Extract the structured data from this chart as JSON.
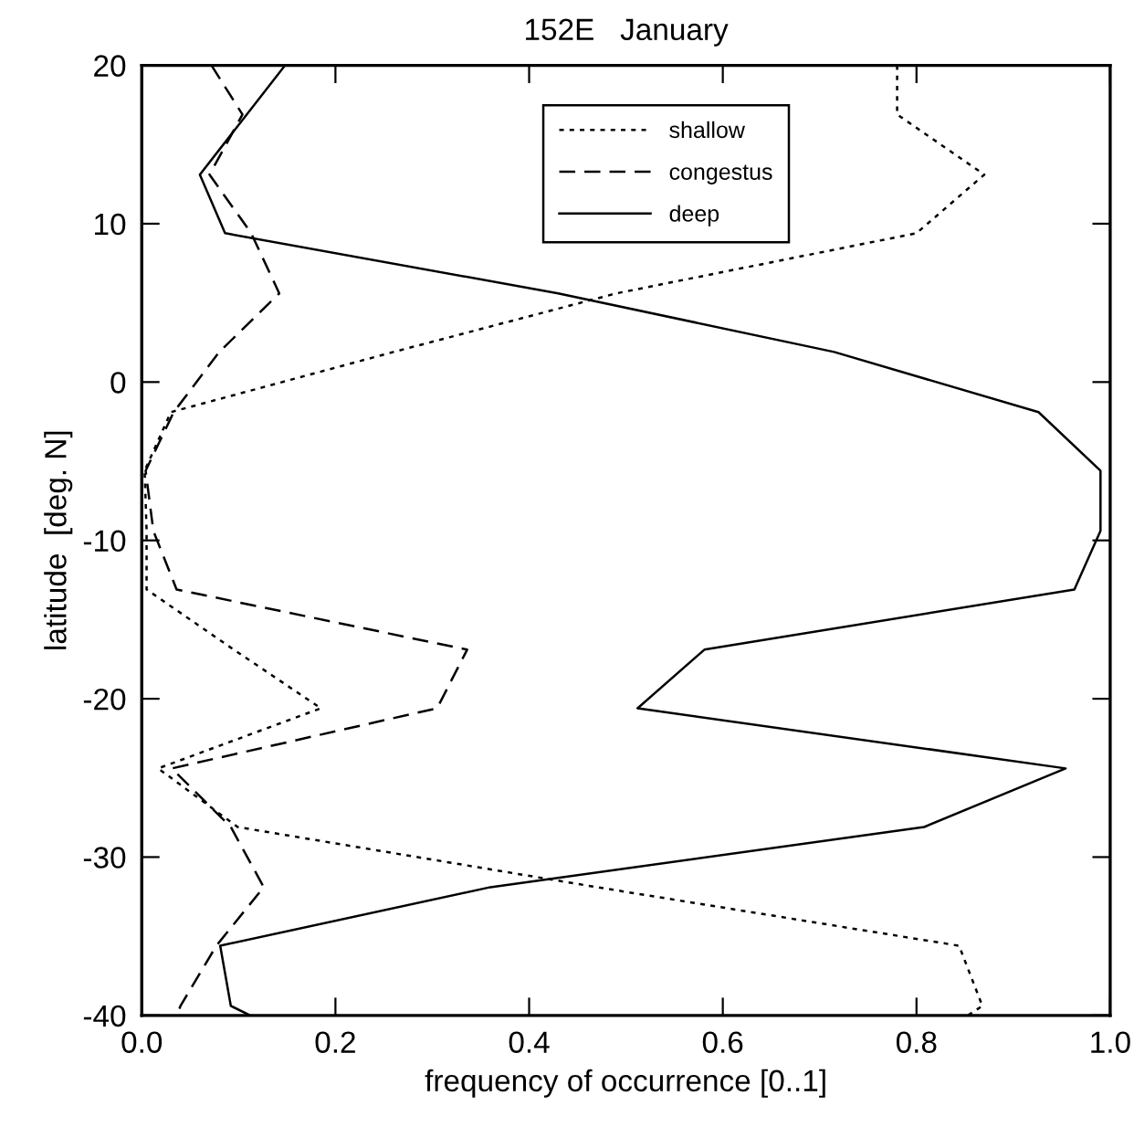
{
  "chart_data": {
    "type": "line",
    "title": "152E   January",
    "xlabel": "frequency of occurrence [0..1]",
    "ylabel": "latitude  [deg. N]",
    "xlim": [
      0,
      1
    ],
    "xticks": [
      {
        "value": 0,
        "label": "0.0"
      },
      0.2,
      0.4,
      0.6,
      0.8,
      {
        "value": 1,
        "label": "1.0"
      }
    ],
    "ylim": [
      -40,
      20
    ],
    "yticks": [
      -40,
      -30,
      -20,
      -10,
      0,
      10,
      20
    ],
    "grid": false,
    "legend": "top right",
    "marker": "none",
    "series": [
      {
        "name": "shallow",
        "color": "#000000",
        "line_style": "dotted",
        "x": [
          0.78,
          0.78,
          0.87,
          0.8,
          0.49,
          0.26,
          0.03,
          0.003,
          0.005,
          0.005,
          0.095,
          0.185,
          0.017,
          0.099,
          0.47,
          0.844,
          0.868,
          0.853
        ],
        "values": [
          20,
          16.9,
          13.1,
          9.4,
          5.6,
          1.9,
          -1.9,
          -5.6,
          -9.4,
          -13.1,
          -16.9,
          -20.6,
          -24.4,
          -28.1,
          -31.9,
          -35.6,
          -39.4,
          -40
        ]
      },
      {
        "name": "congestus",
        "color": "#000000",
        "line_style": "dashed",
        "x": [
          0.072,
          0.104,
          0.07,
          0.113,
          0.142,
          0.08,
          0.033,
          0.004,
          0.012,
          0.036,
          0.336,
          0.305,
          0.031,
          0.092,
          0.126,
          0.077,
          0.04,
          0.036
        ],
        "values": [
          20,
          16.9,
          13.1,
          9.4,
          5.6,
          1.9,
          -1.9,
          -5.6,
          -9.4,
          -13.1,
          -16.9,
          -20.6,
          -24.4,
          -28.1,
          -31.9,
          -35.6,
          -39.4,
          -40
        ]
      },
      {
        "name": "deep",
        "color": "#000000",
        "line_style": "solid",
        "x": [
          0.148,
          0.06,
          0.086,
          0.43,
          0.715,
          0.926,
          0.99,
          0.99,
          0.963,
          0.581,
          0.512,
          0.954,
          0.808,
          0.36,
          0.081,
          0.092,
          0.112
        ],
        "values": [
          20,
          13.1,
          9.4,
          5.6,
          1.9,
          -1.9,
          -5.6,
          -9.4,
          -13.1,
          -16.9,
          -20.6,
          -24.4,
          -28.1,
          -31.9,
          -35.6,
          -39.4,
          -40
        ]
      }
    ]
  }
}
